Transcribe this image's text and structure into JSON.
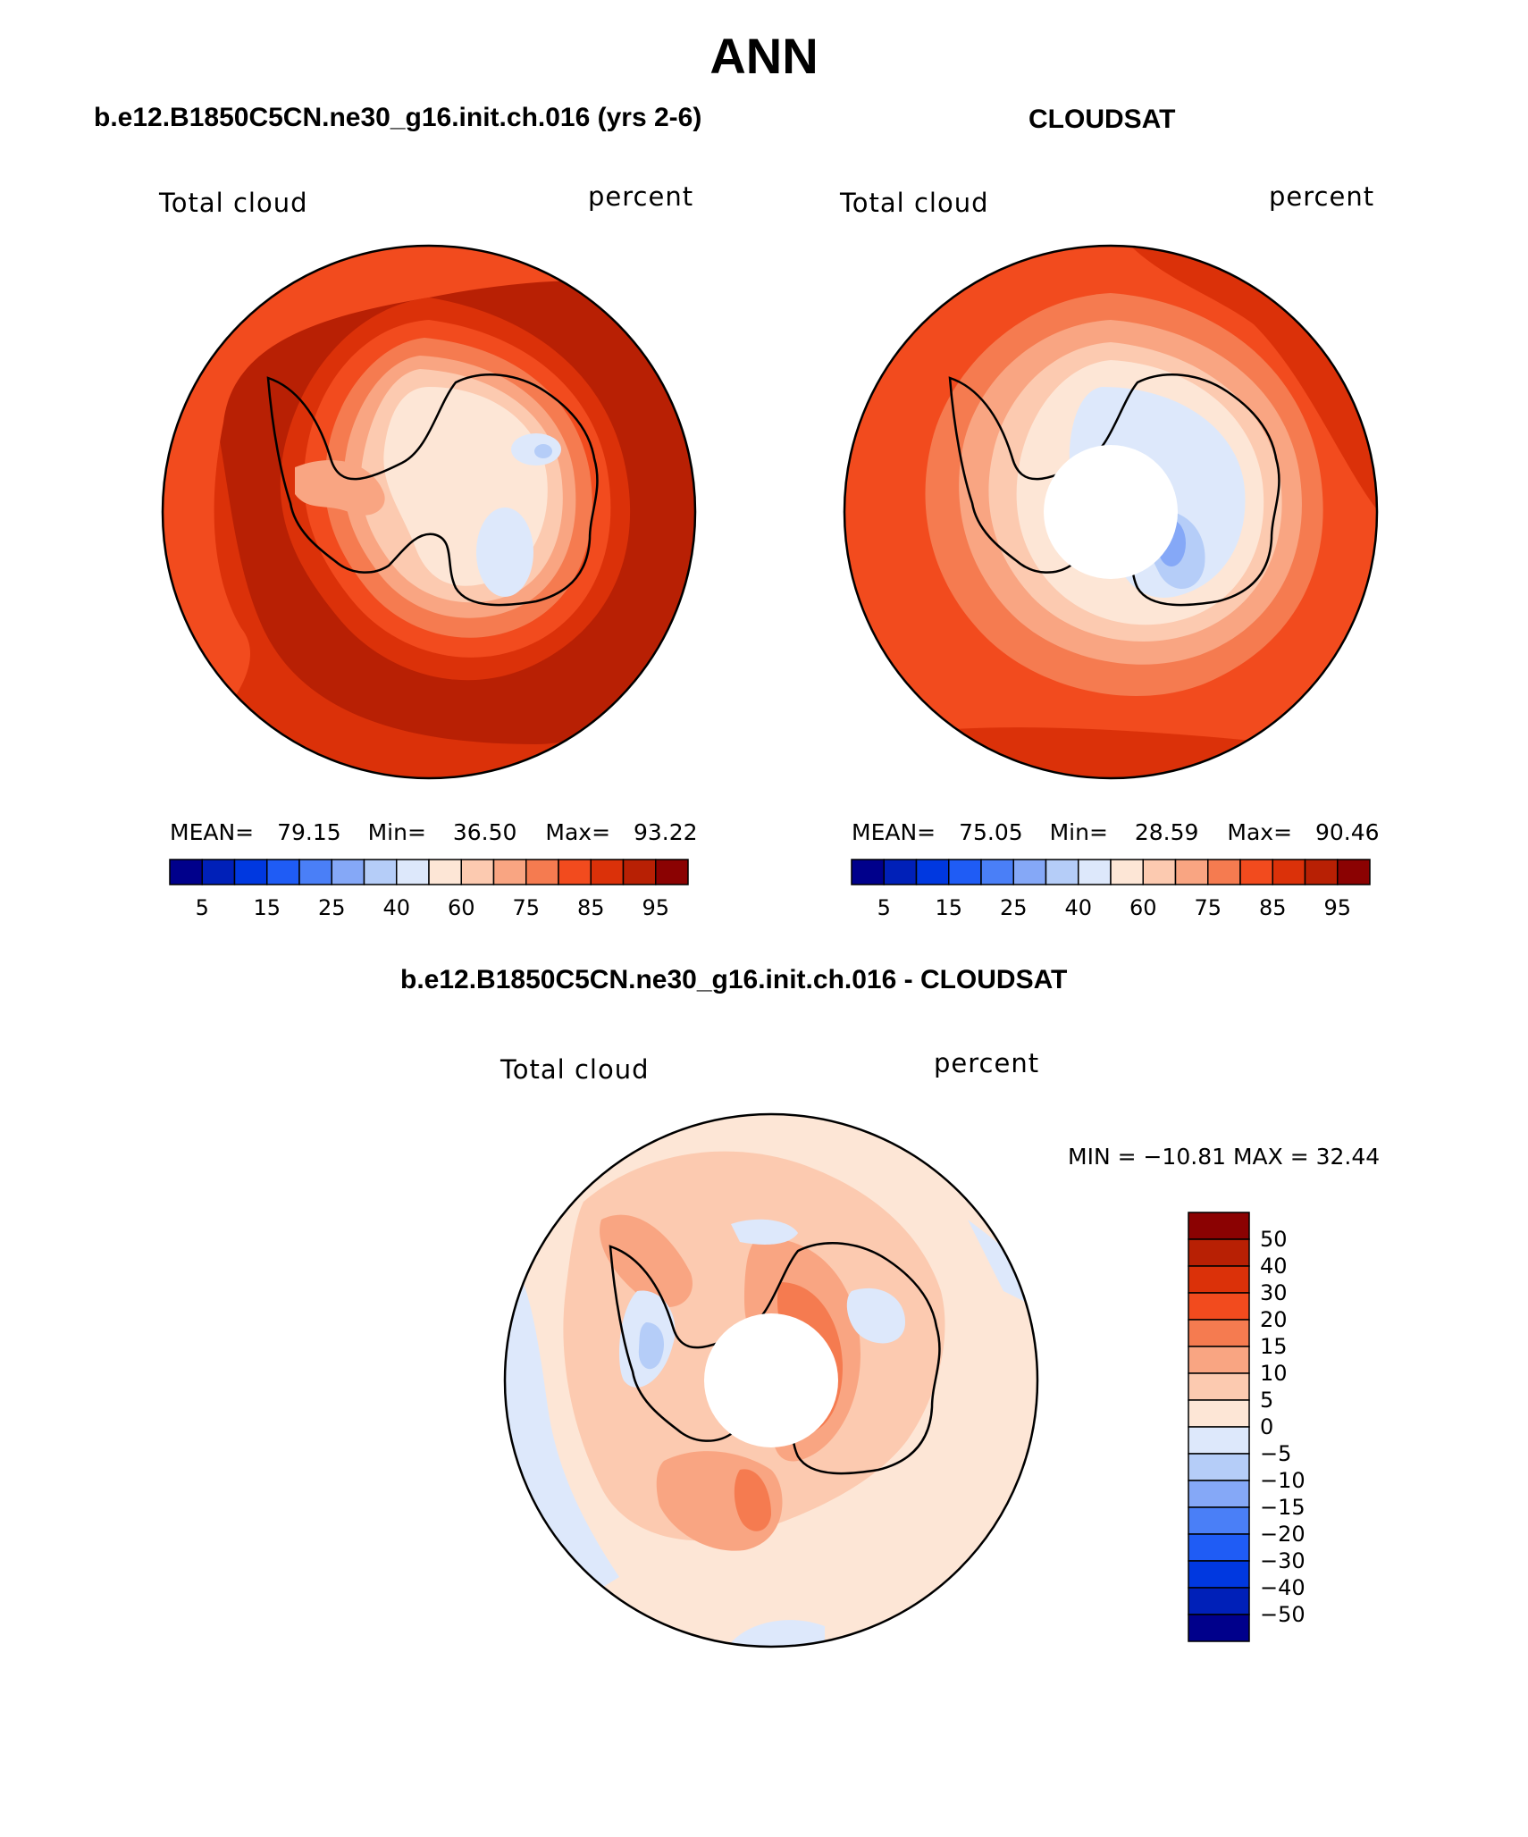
{
  "title": "ANN",
  "panels": [
    {
      "case_title": "b.e12.B1850C5CN.ne30_g16.init.ch.016 (yrs 2-6)",
      "variable": "Total cloud",
      "units": "percent",
      "stats": {
        "mean_label": "MEAN=",
        "mean": "79.15",
        "min_label": "Min=",
        "min": "36.50",
        "max_label": "Max=",
        "max": "93.22"
      }
    },
    {
      "case_title": "CLOUDSAT",
      "variable": "Total cloud",
      "units": "percent",
      "stats": {
        "mean_label": "MEAN=",
        "mean": "75.05",
        "min_label": "Min=",
        "min": "28.59",
        "max_label": "Max=",
        "max": "90.46"
      }
    },
    {
      "case_title": "b.e12.B1850C5CN.ne30_g16.init.ch.016 - CLOUDSAT",
      "variable": "Total cloud",
      "units": "percent",
      "stats": {
        "min_max": "MIN = −10.81  MAX =   32.44"
      }
    }
  ],
  "abs_colorbar": {
    "tick_labels": [
      "5",
      "15",
      "25",
      "40",
      "60",
      "75",
      "85",
      "95"
    ],
    "colors": [
      "#00008b",
      "#0020b8",
      "#0038e0",
      "#1f5cf5",
      "#4a7ff7",
      "#85a8f7",
      "#b5cdf8",
      "#dde8fb",
      "#fde6d6",
      "#fccab0",
      "#f9a582",
      "#f57b50",
      "#f24b1e",
      "#db3109",
      "#b82004",
      "#8b0202"
    ]
  },
  "diff_colorbar": {
    "tick_labels": [
      "50",
      "40",
      "30",
      "20",
      "15",
      "10",
      "5",
      "0",
      "−5",
      "−10",
      "−15",
      "−20",
      "−30",
      "−40",
      "−50"
    ],
    "colors": [
      "#8b0202",
      "#b82004",
      "#db3109",
      "#f24b1e",
      "#f57b50",
      "#f9a582",
      "#fccab0",
      "#fde6d6",
      "#dde8fb",
      "#b5cdf8",
      "#85a8f7",
      "#4a7ff7",
      "#1f5cf5",
      "#0038e0",
      "#0020b8",
      "#00008b"
    ]
  },
  "map_colors": {
    "dark_red": "#b82004",
    "red": "#db3109",
    "orange_red": "#f24b1e",
    "orange": "#f57b50",
    "salmon": "#f9a582",
    "peach": "#fccab0",
    "cream": "#fde6d6",
    "light_blue": "#dde8fb",
    "blue": "#b5cdf8",
    "mid_blue": "#85a8f7"
  }
}
